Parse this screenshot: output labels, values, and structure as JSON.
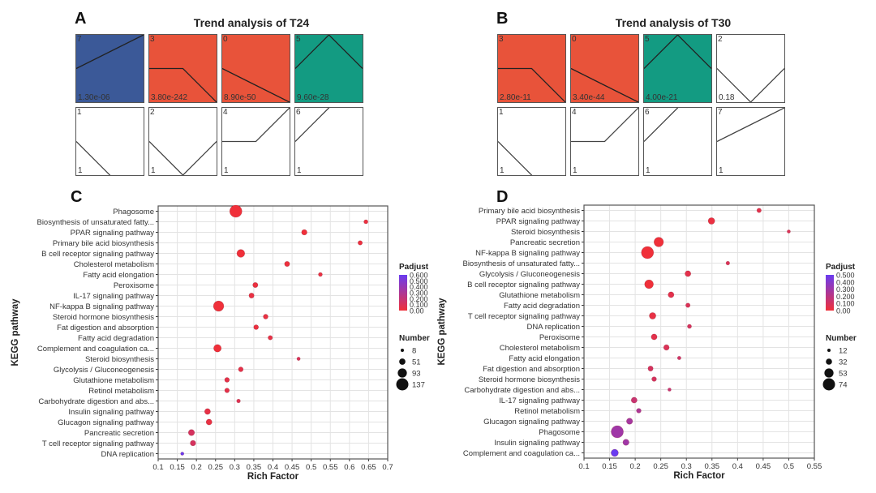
{
  "panels": {
    "A": {
      "letter": "A",
      "title": "Trend analysis of T24",
      "tiles": [
        {
          "id": "7",
          "pvalue": "1.30e-06",
          "color": "#3b5998",
          "profile": [
            0.5,
            0.75,
            1.0
          ]
        },
        {
          "id": "3",
          "pvalue": "3.80e-242",
          "color": "#e8533a",
          "profile": [
            0.5,
            0.5,
            0.0
          ]
        },
        {
          "id": "0",
          "pvalue": "8.90e-50",
          "color": "#e8533a",
          "profile": [
            0.5,
            0.25,
            0.0
          ]
        },
        {
          "id": "5",
          "pvalue": "9.60e-28",
          "color": "#139b82",
          "profile": [
            0.5,
            1.0,
            0.5
          ]
        },
        {
          "id": "1",
          "pvalue": "1",
          "color": "#ffffff",
          "profile": [
            0.5,
            0.0,
            -0.5
          ]
        },
        {
          "id": "2",
          "pvalue": "1",
          "color": "#ffffff",
          "profile": [
            0.5,
            0.0,
            0.5
          ]
        },
        {
          "id": "4",
          "pvalue": "1",
          "color": "#ffffff",
          "profile": [
            0.5,
            0.5,
            1.0
          ]
        },
        {
          "id": "6",
          "pvalue": "1",
          "color": "#ffffff",
          "profile": [
            0.5,
            1.0,
            1.5
          ]
        }
      ]
    },
    "B": {
      "letter": "B",
      "title": "Trend analysis of T30",
      "tiles": [
        {
          "id": "3",
          "pvalue": "2.80e-11",
          "color": "#e8533a",
          "profile": [
            0.5,
            0.5,
            0.0
          ]
        },
        {
          "id": "0",
          "pvalue": "3.40e-44",
          "color": "#e8533a",
          "profile": [
            0.5,
            0.25,
            0.0
          ]
        },
        {
          "id": "5",
          "pvalue": "4.00e-21",
          "color": "#139b82",
          "profile": [
            0.5,
            1.0,
            0.5
          ]
        },
        {
          "id": "2",
          "pvalue": "0.18",
          "color": "#ffffff",
          "profile": [
            0.5,
            0.0,
            0.5
          ]
        },
        {
          "id": "1",
          "pvalue": "1",
          "color": "#ffffff",
          "profile": [
            0.5,
            0.0,
            -0.5
          ]
        },
        {
          "id": "4",
          "pvalue": "1",
          "color": "#ffffff",
          "profile": [
            0.5,
            0.5,
            1.0
          ]
        },
        {
          "id": "6",
          "pvalue": "1",
          "color": "#ffffff",
          "profile": [
            0.5,
            1.0,
            1.5
          ]
        },
        {
          "id": "7",
          "pvalue": "1",
          "color": "#ffffff",
          "profile": [
            0.5,
            0.75,
            1.0
          ]
        }
      ]
    }
  },
  "chart_data": [
    {
      "panel": "C",
      "type": "scatter",
      "title": "",
      "xlabel": "Rich Factor",
      "ylabel": "KEGG pathway",
      "xlim": [
        0.1,
        0.7
      ],
      "xticks": [
        "0.1",
        "0.15",
        "0.2",
        "0.25",
        "0.3",
        "0.35",
        "0.4",
        "0.45",
        "0.5",
        "0.55",
        "0.6",
        "0.65",
        "0.7"
      ],
      "grid": true,
      "categories": [
        "Phagosome",
        "Biosynthesis of unsaturated fatty...",
        "PPAR signaling pathway",
        "Primary bile acid biosynthesis",
        "B cell receptor signaling pathway",
        "Cholesterol metabolism",
        "Fatty acid elongation",
        "Peroxisome",
        "IL-17 signaling pathway",
        "NF-kappa B signaling pathway",
        "Steroid hormone biosynthesis",
        "Fat digestion and absorption",
        "Fatty acid degradation",
        "Complement and coagulation ca...",
        "Steroid biosynthesis",
        "Glycolysis / Gluconeogenesis",
        "Glutathione metabolism",
        "Retinol metabolism",
        "Carbohydrate digestion and abs...",
        "Insulin signaling pathway",
        "Glucagon signaling pathway",
        "Pancreatic secretion",
        "T cell receptor signaling pathway",
        "DNA replication"
      ],
      "rich_factor": [
        0.303,
        0.643,
        0.482,
        0.628,
        0.316,
        0.437,
        0.524,
        0.354,
        0.344,
        0.258,
        0.381,
        0.356,
        0.393,
        0.255,
        0.467,
        0.316,
        0.28,
        0.28,
        0.31,
        0.229,
        0.233,
        0.187,
        0.191,
        0.163
      ],
      "number": [
        137,
        20,
        40,
        25,
        75,
        35,
        18,
        35,
        35,
        110,
        30,
        30,
        25,
        70,
        10,
        30,
        30,
        28,
        15,
        45,
        45,
        50,
        40,
        8
      ],
      "padjust": [
        0.0,
        0.02,
        0.0,
        0.02,
        0.0,
        0.01,
        0.03,
        0.02,
        0.03,
        0.0,
        0.03,
        0.02,
        0.04,
        0.0,
        0.1,
        0.05,
        0.05,
        0.05,
        0.08,
        0.04,
        0.03,
        0.12,
        0.12,
        0.6
      ],
      "legend_color": {
        "title": "Padjust",
        "ticks": [
          "0.600",
          "0.500",
          "0.400",
          "0.300",
          "0.200",
          "0.100",
          "0.00"
        ],
        "range": [
          0.0,
          0.6
        ],
        "low_color": "#f0303a",
        "high_color": "#6a3cf0",
        "position": "right"
      },
      "legend_size": {
        "title": "Number",
        "values": [
          8,
          51,
          93,
          137
        ],
        "labels": [
          "8",
          "51",
          "93",
          "137"
        ],
        "position": "right"
      }
    },
    {
      "panel": "D",
      "type": "scatter",
      "title": "",
      "xlabel": "Rich Factor",
      "ylabel": "KEGG pathway",
      "xlim": [
        0.1,
        0.55
      ],
      "xticks": [
        "0.1",
        "0.15",
        "0.2",
        "0.25",
        "0.3",
        "0.35",
        "0.4",
        "0.45",
        "0.5",
        "0.55"
      ],
      "grid": true,
      "categories": [
        "Primary bile acid biosynthesis",
        "PPAR signaling pathway",
        "Steroid biosynthesis",
        "Pancreatic secretion",
        "NF-kappa B signaling pathway",
        "Biosynthesis of unsaturated fatty...",
        "Glycolysis / Gluconeogenesis",
        "B cell receptor signaling pathway",
        "Glutathione metabolism",
        "Fatty acid degradation",
        "T cell receptor signaling pathway",
        "DNA replication",
        "Peroxisome",
        "Cholesterol metabolism",
        "Fatty acid elongation",
        "Fat digestion and absorption",
        "Steroid hormone biosynthesis",
        "Carbohydrate digestion and abs...",
        "IL-17 signaling pathway",
        "Retinol metabolism",
        "Glucagon signaling pathway",
        "Phagosome",
        "Insulin signaling pathway",
        "Complement and coagulation ca..."
      ],
      "rich_factor": [
        0.442,
        0.349,
        0.5,
        0.246,
        0.224,
        0.381,
        0.303,
        0.227,
        0.27,
        0.303,
        0.234,
        0.306,
        0.237,
        0.261,
        0.286,
        0.23,
        0.237,
        0.267,
        0.198,
        0.207,
        0.189,
        0.165,
        0.182,
        0.16
      ],
      "number": [
        20,
        35,
        12,
        55,
        74,
        15,
        30,
        50,
        30,
        20,
        35,
        18,
        30,
        28,
        14,
        25,
        22,
        12,
        30,
        22,
        32,
        74,
        32,
        40
      ],
      "padjust": [
        0.05,
        0.02,
        0.08,
        0.0,
        0.0,
        0.08,
        0.05,
        0.0,
        0.05,
        0.08,
        0.03,
        0.1,
        0.05,
        0.08,
        0.12,
        0.1,
        0.1,
        0.15,
        0.15,
        0.25,
        0.28,
        0.3,
        0.3,
        0.5
      ],
      "legend_color": {
        "title": "Padjust",
        "ticks": [
          "0.500",
          "0.400",
          "0.300",
          "0.200",
          "0.100",
          "0.00"
        ],
        "range": [
          0.0,
          0.5
        ],
        "low_color": "#f0303a",
        "high_color": "#6a3cf0",
        "position": "right"
      },
      "legend_size": {
        "title": "Number",
        "values": [
          12,
          32,
          53,
          74
        ],
        "labels": [
          "12",
          "32",
          "53",
          "74"
        ],
        "position": "right"
      }
    }
  ]
}
